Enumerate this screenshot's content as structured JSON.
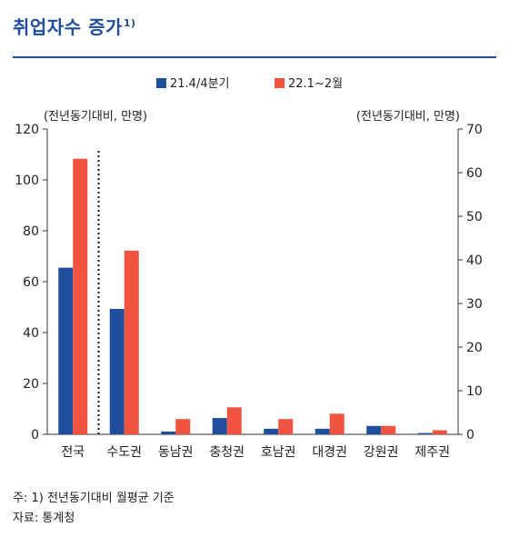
{
  "header": {
    "title": "취업자수 증가",
    "title_note_mark": "1)"
  },
  "chart_data": {
    "type": "bar",
    "categories": [
      "전국",
      "수도권",
      "동남권",
      "충청권",
      "호남권",
      "대경권",
      "강원권",
      "제주권"
    ],
    "series": [
      {
        "name": "21.4/4분기",
        "axis": "left",
        "color": "#1f4e9c",
        "values": [
          65.5,
          49.3,
          1.1,
          6.4,
          2.2,
          2.2,
          3.3,
          0.5
        ]
      },
      {
        "name": "22.1~2월",
        "axis": "left",
        "color": "#f0533f",
        "values": [
          108.3,
          72.2,
          6.0,
          10.6,
          6.0,
          8.1,
          3.3,
          1.6
        ]
      }
    ],
    "y_left": {
      "label": "(전년동기대비, 만명)",
      "range": [
        0,
        120
      ],
      "ticks": [
        0,
        20,
        40,
        60,
        80,
        100,
        120
      ]
    },
    "y_right": {
      "label": "(전년동기대비, 만명)",
      "range": [
        0,
        70
      ],
      "ticks": [
        0,
        10,
        20,
        30,
        40,
        50,
        60,
        70
      ]
    },
    "separator_after_category": "전국",
    "legend_position": "top",
    "grid": false
  },
  "footer": {
    "note": "주: 1) 전년동기대비 월평균 기준",
    "source": "자료: 통계청"
  }
}
